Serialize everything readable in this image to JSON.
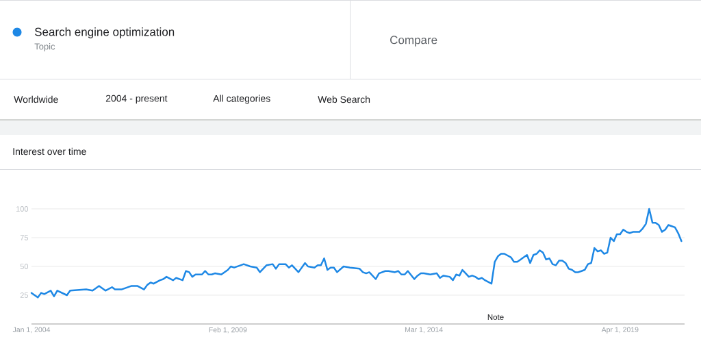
{
  "chart_data": {
    "type": "line",
    "title": "Interest over time",
    "x": [
      "2004-01",
      "2004-03",
      "2004-04",
      "2004-05",
      "2004-07",
      "2004-08",
      "2004-09",
      "2004-12",
      "2005-01",
      "2005-06",
      "2005-08",
      "2005-10",
      "2005-12",
      "2006-02",
      "2006-03",
      "2006-05",
      "2006-08",
      "2006-10",
      "2006-12",
      "2007-01",
      "2007-02",
      "2007-03",
      "2007-05",
      "2007-06",
      "2007-07",
      "2007-09",
      "2007-10",
      "2007-12",
      "2008-01",
      "2008-02",
      "2008-03",
      "2008-04",
      "2008-06",
      "2008-07",
      "2008-08",
      "2008-09",
      "2008-10",
      "2008-12",
      "2009-02",
      "2009-03",
      "2009-04",
      "2009-06",
      "2009-07",
      "2009-09",
      "2009-11",
      "2009-12",
      "2010-02",
      "2010-04",
      "2010-05",
      "2010-06",
      "2010-08",
      "2010-09",
      "2010-10",
      "2010-12",
      "2011-02",
      "2011-03",
      "2011-05",
      "2011-06",
      "2011-07",
      "2011-08",
      "2011-09",
      "2011-10",
      "2011-11",
      "2011-12",
      "2012-02",
      "2012-04",
      "2012-07",
      "2012-08",
      "2012-09",
      "2012-10",
      "2012-12",
      "2013-01",
      "2013-03",
      "2013-04",
      "2013-06",
      "2013-07",
      "2013-08",
      "2013-09",
      "2013-10",
      "2013-12",
      "2014-01",
      "2014-02",
      "2014-03",
      "2014-05",
      "2014-07",
      "2014-08",
      "2014-09",
      "2014-11",
      "2014-12",
      "2015-01",
      "2015-02",
      "2015-03",
      "2015-04",
      "2015-05",
      "2015-06",
      "2015-07",
      "2015-08",
      "2015-09",
      "2015-10",
      "2015-12",
      "2016-01",
      "2016-02",
      "2016-03",
      "2016-04",
      "2016-06",
      "2016-07",
      "2016-08",
      "2016-09",
      "2016-11",
      "2016-12",
      "2017-01",
      "2017-02",
      "2017-03",
      "2017-04",
      "2017-05",
      "2017-06",
      "2017-07",
      "2017-08",
      "2017-09",
      "2017-10",
      "2017-11",
      "2017-12",
      "2018-01",
      "2018-02",
      "2018-03",
      "2018-04",
      "2018-05",
      "2018-06",
      "2018-07",
      "2018-08",
      "2018-09",
      "2018-10",
      "2018-11",
      "2018-12",
      "2019-01",
      "2019-02",
      "2019-03",
      "2019-04",
      "2019-05",
      "2019-06",
      "2019-07",
      "2019-08",
      "2019-10",
      "2019-11",
      "2019-12",
      "2020-01",
      "2020-02",
      "2020-03",
      "2020-04",
      "2020-05",
      "2020-06",
      "2020-07",
      "2020-08",
      "2020-09",
      "2020-10",
      "2020-11"
    ],
    "series": [
      {
        "name": "Search engine optimization",
        "color": "#1e88e5",
        "values": [
          27,
          23,
          27,
          26,
          29,
          24,
          29,
          25,
          29,
          30,
          29,
          33,
          29,
          32,
          30,
          30,
          33,
          33,
          30,
          34,
          36,
          35,
          38,
          39,
          41,
          38,
          40,
          38,
          46,
          45,
          41,
          43,
          43,
          46,
          43,
          43,
          44,
          43,
          47,
          50,
          49,
          51,
          52,
          50,
          49,
          45,
          51,
          52,
          48,
          52,
          52,
          49,
          51,
          45,
          53,
          50,
          49,
          51,
          51,
          57,
          47,
          49,
          49,
          45,
          50,
          49,
          48,
          45,
          44,
          45,
          39,
          44,
          46,
          46,
          45,
          46,
          43,
          43,
          46,
          39,
          42,
          44,
          44,
          43,
          44,
          40,
          42,
          41,
          38,
          43,
          42,
          47,
          44,
          41,
          42,
          41,
          39,
          40,
          38,
          35,
          54,
          59,
          61,
          61,
          58,
          54,
          54,
          56,
          60,
          53,
          60,
          61,
          64,
          62,
          56,
          57,
          52,
          51,
          55,
          55,
          53,
          48,
          47,
          45,
          45,
          46,
          47,
          52,
          53,
          66,
          63,
          64,
          61,
          62,
          75,
          72,
          78,
          78,
          82,
          80,
          79,
          80,
          80,
          83,
          87,
          100,
          88,
          88,
          86,
          80,
          82,
          86,
          85,
          84,
          79,
          72
        ]
      }
    ],
    "xlim": [
      "2004-01-01",
      "2020-12-01"
    ],
    "ylim": [
      0,
      100
    ],
    "xticks": [
      {
        "value": "2004-01-01",
        "label": "Jan 1, 2004"
      },
      {
        "value": "2009-02-01",
        "label": "Feb 1, 2009"
      },
      {
        "value": "2014-03-01",
        "label": "Mar 1, 2014"
      },
      {
        "value": "2019-04-01",
        "label": "Apr 1, 2019"
      }
    ],
    "yticks": [
      25,
      50,
      75,
      100
    ],
    "grid": "y",
    "legend": "top left",
    "line_style": "solid",
    "annotations": [
      "Topic",
      "Compare",
      "Worldwide",
      "2004 - present",
      "All categories",
      "Web Search",
      "Note"
    ]
  }
}
